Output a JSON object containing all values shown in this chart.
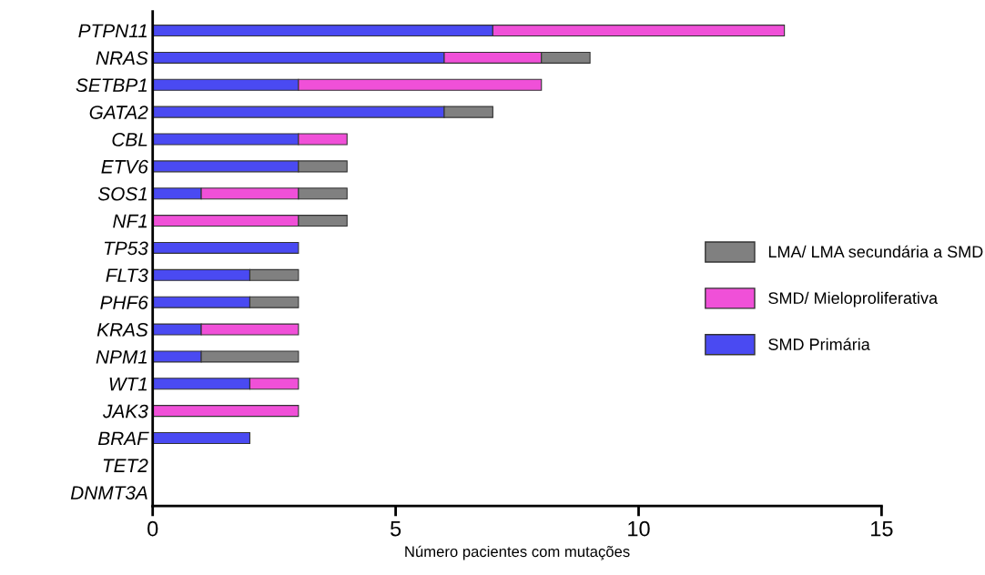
{
  "chart_data": {
    "type": "bar",
    "orientation": "horizontal",
    "stacked": true,
    "xlabel": "Número pacientes com mutações",
    "categories": [
      "PTPN11",
      "NRAS",
      "SETBP1",
      "GATA2",
      "CBL",
      "ETV6",
      "SOS1",
      "NF1",
      "TP53",
      "FLT3",
      "PHF6",
      "KRAS",
      "NPM1",
      "WT1",
      "JAK3",
      "BRAF",
      "TET2",
      "DNMT3A"
    ],
    "series": [
      {
        "name": "SMD Primária",
        "color": "#4a4af2",
        "values": [
          7,
          6,
          3,
          6,
          3,
          3,
          1,
          0,
          3,
          2,
          2,
          1,
          1,
          2,
          0,
          2,
          0,
          0
        ]
      },
      {
        "name": "SMD/ Mieloproliferativa",
        "color": "#f050d8",
        "values": [
          6,
          2,
          5,
          0,
          1,
          0,
          2,
          3,
          0,
          0,
          0,
          2,
          0,
          1,
          3,
          0,
          0,
          0
        ]
      },
      {
        "name": "LMA/ LMA secundária a SMD",
        "color": "#808080",
        "values": [
          0,
          1,
          0,
          1,
          0,
          1,
          1,
          1,
          0,
          1,
          1,
          0,
          2,
          0,
          0,
          0,
          0,
          0
        ]
      }
    ],
    "xlim": [
      0,
      15
    ],
    "xticks": [
      0,
      5,
      10,
      15
    ],
    "grid": false,
    "legend": "right"
  }
}
